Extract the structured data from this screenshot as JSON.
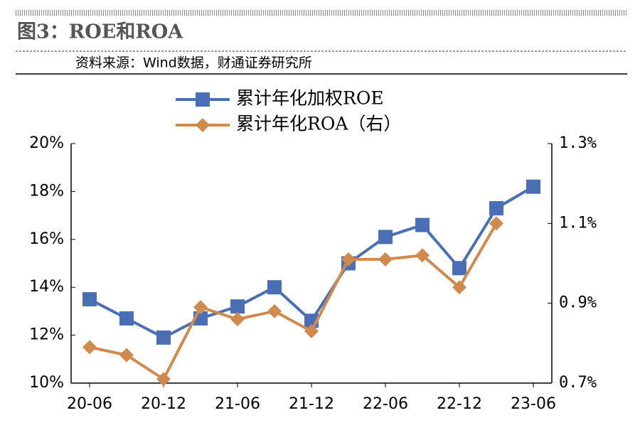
{
  "header": {
    "title": "图3：ROE和ROA",
    "source": "资料来源：Wind数据，财通证券研究所"
  },
  "chart_data": {
    "type": "line",
    "categories": [
      "20-06",
      null,
      "20-12",
      null,
      "21-06",
      null,
      "21-12",
      null,
      "22-06",
      null,
      "22-12",
      null,
      "23-06"
    ],
    "series": [
      {
        "name": "累计年化加权ROE",
        "color": "#4a6fb5",
        "marker": "square",
        "values": [
          13.5,
          12.7,
          11.9,
          12.7,
          13.2,
          14.0,
          12.6,
          15.0,
          16.1,
          16.6,
          14.8,
          17.3,
          18.2
        ]
      },
      {
        "name": "累计年化ROA（右）",
        "color": "#d08a4e",
        "marker": "diamond",
        "axis": "y2",
        "values": [
          0.79,
          0.77,
          0.71,
          0.89,
          0.86,
          0.88,
          0.83,
          1.01,
          1.01,
          1.02,
          0.94,
          1.1,
          null
        ]
      }
    ],
    "ylim": [
      10,
      20
    ],
    "yticks": [
      {
        "value": 10,
        "label": "10%"
      },
      {
        "value": 12,
        "label": "12%"
      },
      {
        "value": 14,
        "label": "14%"
      },
      {
        "value": 16,
        "label": "16%"
      },
      {
        "value": 18,
        "label": "18%"
      },
      {
        "value": 20,
        "label": "20%"
      }
    ],
    "y2lim": [
      0.7,
      1.3
    ],
    "y2ticks": [
      {
        "value": 0.7,
        "label": "0.7%"
      },
      {
        "value": 0.9,
        "label": "0.9%"
      },
      {
        "value": 1.1,
        "label": "1.1%"
      },
      {
        "value": 1.3,
        "label": "1.3%"
      }
    ],
    "grid": false,
    "legend": "top"
  }
}
